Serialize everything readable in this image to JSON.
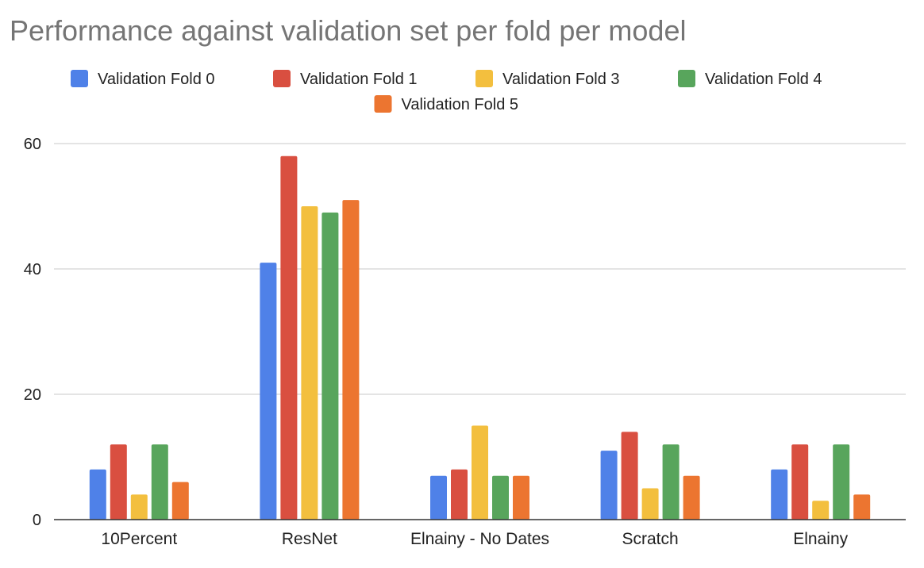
{
  "chart_data": {
    "type": "bar",
    "title": "Performance against validation set per fold per model",
    "xlabel": "",
    "ylabel": "",
    "categories": [
      "10Percent",
      "ResNet",
      "Elnainy - No Dates",
      "Scratch",
      "Elnainy"
    ],
    "series": [
      {
        "name": "Validation Fold 0",
        "color": "#4f81e8",
        "values": [
          8,
          41,
          7,
          11,
          8
        ]
      },
      {
        "name": "Validation Fold 1",
        "color": "#d94f40",
        "values": [
          12,
          58,
          8,
          14,
          12
        ]
      },
      {
        "name": "Validation Fold 3",
        "color": "#f3bf3e",
        "values": [
          4,
          50,
          15,
          5,
          3
        ]
      },
      {
        "name": "Validation Fold 4",
        "color": "#58a55c",
        "values": [
          12,
          49,
          7,
          12,
          12
        ]
      },
      {
        "name": "Validation Fold 5",
        "color": "#ec7530",
        "values": [
          6,
          51,
          7,
          7,
          4
        ]
      }
    ],
    "yticks": [
      "0",
      "20",
      "40",
      "60"
    ],
    "ylim": [
      0,
      60
    ],
    "grid": true,
    "legend_position": "top"
  }
}
